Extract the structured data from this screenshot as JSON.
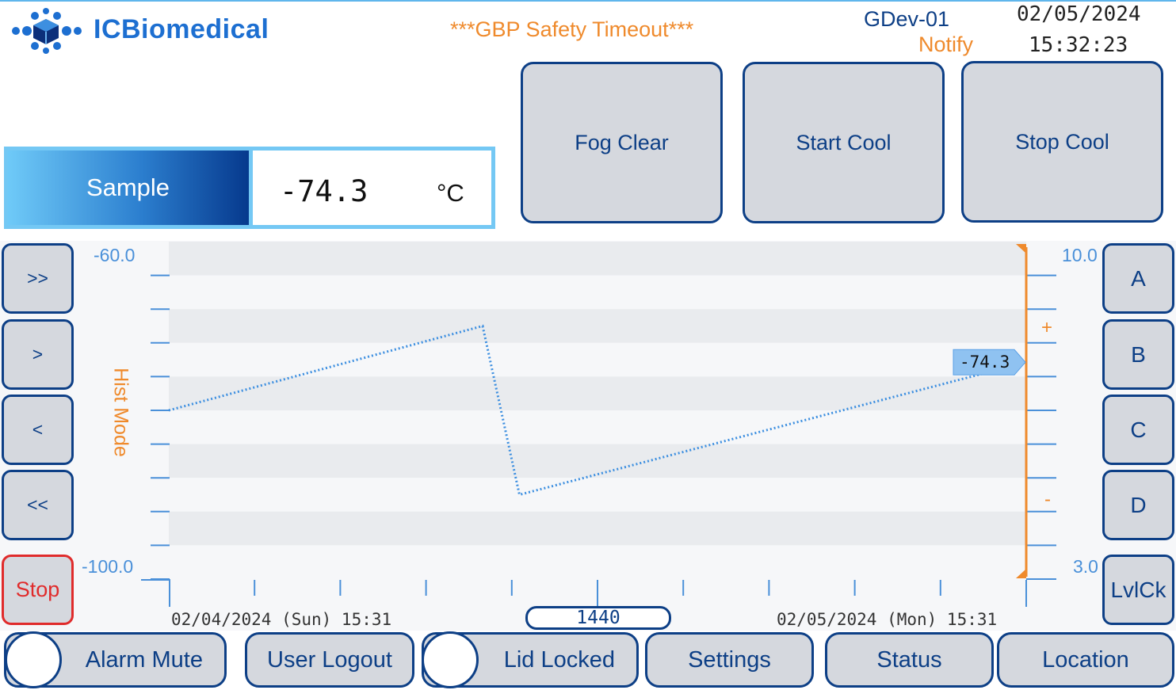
{
  "header": {
    "brand": "ICBiomedical",
    "alert": "***GBP Safety Timeout***",
    "device": "GDev-01",
    "notify": "Notify",
    "date": "02/05/2024",
    "time": "15:32:23"
  },
  "sample": {
    "label": "Sample",
    "value": "-74.3",
    "unit": "°C"
  },
  "actions": {
    "fog_clear": "Fog Clear",
    "start_cool": "Start Cool",
    "stop_cool": "Stop Cool"
  },
  "nav": {
    "fast_forward": ">>",
    "forward": ">",
    "back": "<",
    "fast_back": "<<",
    "stop": "Stop"
  },
  "channels": {
    "a": "A",
    "b": "B",
    "c": "C",
    "d": "D",
    "lvlck": "LvlCk"
  },
  "chart": {
    "mode_label": "Hist Mode",
    "left_top": "-60.0",
    "left_bottom": "-100.0",
    "right_top": "10.0",
    "right_bottom": "3.0",
    "plus": "+",
    "minus": "-",
    "start_label": "02/04/2024 (Sun) 15:31",
    "end_label": "02/05/2024 (Mon) 15:31",
    "span": "1440",
    "current_value": "-74.3"
  },
  "chart_data": {
    "type": "line",
    "x": [
      "02/04/2024 15:31",
      "02/04/2024 ~22:30",
      "02/04/2024 ~23:15",
      "02/05/2024 15:31"
    ],
    "series": [
      {
        "values": [
          -80.0,
          -70.0,
          -90.0,
          -74.3
        ]
      }
    ],
    "ylim": [
      -100.0,
      -60.0
    ],
    "xlabel": "",
    "ylabel": "",
    "grid": "banded",
    "color": "#3d8fe0"
  },
  "footer": {
    "alarm_mute": "Alarm Mute",
    "user_logout": "User Logout",
    "lid_locked": "Lid Locked",
    "settings": "Settings",
    "status": "Status",
    "location": "Location"
  },
  "colors": {
    "accent": "#0d3f86",
    "orange": "#ef8a2c",
    "light_blue": "#74c8f4",
    "stop_red": "#e02b2b"
  }
}
